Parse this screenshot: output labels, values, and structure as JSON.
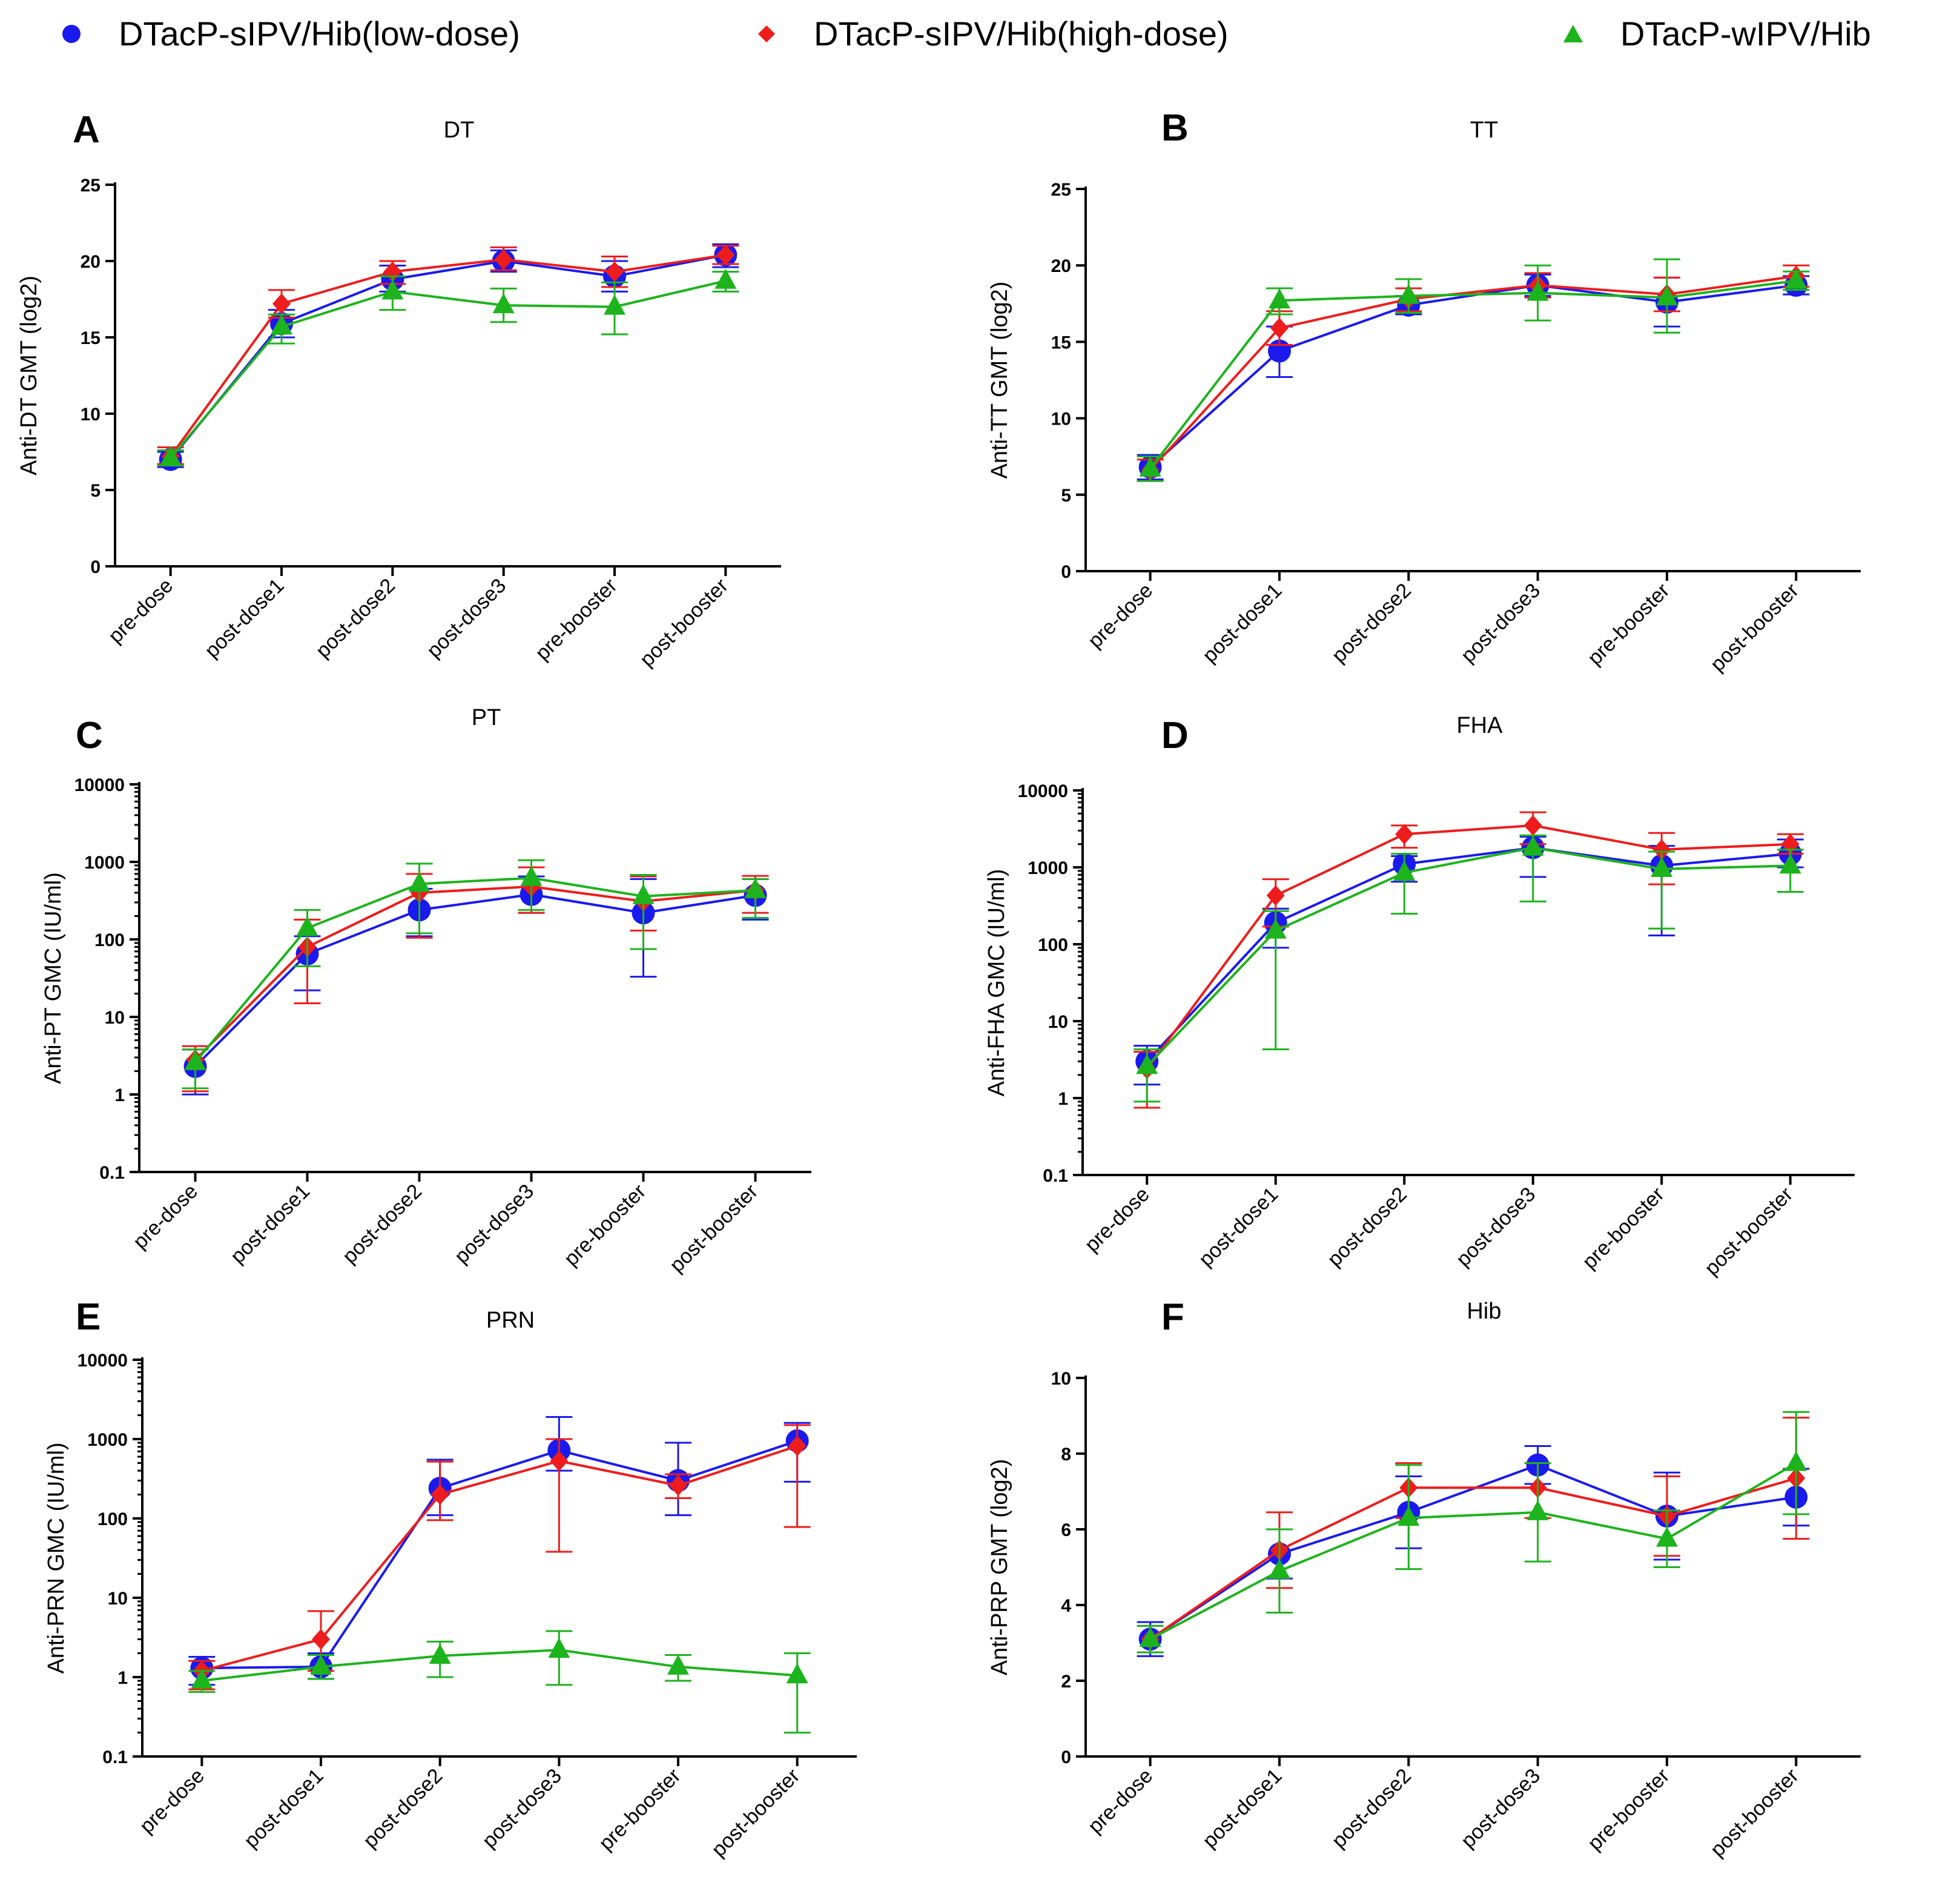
{
  "legend": {
    "low": "DTacP-sIPV/Hib(low-dose)",
    "high": "DTacP-sIPV/Hib(high-dose)",
    "wipv": "DTacP-wIPV/Hib"
  },
  "colors": {
    "low": "#1a1aee",
    "high": "#ee1c1c",
    "wipv": "#1db31d"
  },
  "chart_data": [
    {
      "panel": "A",
      "type": "line",
      "title": "DT",
      "ylabel": "Anti-DT GMT (log2)",
      "scale": "linear",
      "ylim": [
        0,
        25
      ],
      "yticks": [
        0,
        5,
        10,
        15,
        20,
        25
      ],
      "ytick_labels": [
        "0",
        "5",
        "10",
        "15",
        "20",
        "25"
      ],
      "categories": [
        "pre-dose",
        "post-dose1",
        "post-dose2",
        "post-dose3",
        "pre-booster",
        "post-booster"
      ],
      "series": [
        {
          "name": "DTacP-sIPV/Hib(low-dose)",
          "values": [
            7.0,
            15.9,
            18.8,
            20.0,
            19.0,
            20.4
          ],
          "err_low": [
            6.5,
            15.0,
            18.0,
            19.3,
            18.0,
            19.6
          ],
          "err_high": [
            7.5,
            16.8,
            19.7,
            20.7,
            20.0,
            21.1
          ]
        },
        {
          "name": "DTacP-sIPV/Hib(high-dose)",
          "values": [
            7.2,
            17.2,
            19.3,
            20.1,
            19.3,
            20.4
          ],
          "err_low": [
            6.7,
            16.3,
            18.5,
            19.4,
            18.3,
            19.8
          ],
          "err_high": [
            7.8,
            18.1,
            20.0,
            20.9,
            20.3,
            21.0
          ]
        },
        {
          "name": "DTacP-wIPV/Hib",
          "values": [
            7.1,
            15.7,
            18.0,
            17.1,
            17.0,
            18.7
          ],
          "err_low": [
            6.6,
            14.6,
            16.8,
            16.0,
            15.2,
            18.0
          ],
          "err_high": [
            7.6,
            16.5,
            19.0,
            18.2,
            18.6,
            19.3
          ]
        }
      ]
    },
    {
      "panel": "B",
      "type": "line",
      "title": "TT",
      "ylabel": "Anti-TT GMT (log2)",
      "scale": "linear",
      "ylim": [
        0,
        25
      ],
      "yticks": [
        0,
        5,
        10,
        15,
        20,
        25
      ],
      "ytick_labels": [
        "0",
        "5",
        "10",
        "15",
        "20",
        "25"
      ],
      "categories": [
        "pre-dose",
        "post-dose1",
        "post-dose2",
        "post-dose3",
        "pre-booster",
        "post-booster"
      ],
      "series": [
        {
          "name": "DTacP-sIPV/Hib(low-dose)",
          "values": [
            6.8,
            14.4,
            17.4,
            18.7,
            17.6,
            18.7
          ],
          "err_low": [
            6.0,
            12.7,
            16.8,
            18.0,
            16.0,
            18.1
          ],
          "err_high": [
            7.6,
            16.0,
            18.0,
            19.4,
            19.2,
            19.3
          ]
        },
        {
          "name": "DTacP-sIPV/Hib(high-dose)",
          "values": [
            6.6,
            15.9,
            17.8,
            18.7,
            18.1,
            19.3
          ],
          "err_low": [
            5.9,
            14.8,
            17.0,
            17.9,
            17.0,
            18.6
          ],
          "err_high": [
            7.3,
            17.0,
            18.5,
            19.5,
            19.2,
            20.0
          ]
        },
        {
          "name": "DTacP-wIPV/Hib",
          "values": [
            6.7,
            17.7,
            18.0,
            18.2,
            17.9,
            19.0
          ],
          "err_low": [
            5.9,
            16.8,
            16.9,
            16.4,
            15.6,
            18.4
          ],
          "err_high": [
            7.5,
            18.5,
            19.1,
            20.0,
            20.4,
            19.6
          ]
        }
      ]
    },
    {
      "panel": "C",
      "type": "line",
      "title": "PT",
      "ylabel": "Anti-PT GMC (IU/ml)",
      "scale": "log",
      "ylim": [
        0.1,
        10000
      ],
      "yticks": [
        0.1,
        1,
        10,
        100,
        1000,
        10000
      ],
      "ytick_labels": [
        "0.1",
        "1",
        "10",
        "100",
        "1000",
        "10000"
      ],
      "categories": [
        "pre-dose",
        "post-dose1",
        "post-dose2",
        "post-dose3",
        "pre-booster",
        "post-booster"
      ],
      "series": [
        {
          "name": "DTacP-sIPV/Hib(low-dose)",
          "values": [
            2.3,
            65,
            240,
            380,
            220,
            370
          ],
          "err_low": [
            1.0,
            22,
            110,
            220,
            33,
            180
          ],
          "err_high": [
            3.8,
            110,
            450,
            650,
            600,
            600
          ]
        },
        {
          "name": "DTacP-sIPV/Hib(high-dose)",
          "values": [
            2.8,
            80,
            400,
            480,
            310,
            430
          ],
          "err_low": [
            1.1,
            15,
            105,
            220,
            130,
            220
          ],
          "err_high": [
            4.2,
            180,
            700,
            850,
            650,
            660
          ]
        },
        {
          "name": "DTacP-wIPV/Hib",
          "values": [
            2.6,
            140,
            520,
            620,
            360,
            430
          ],
          "err_low": [
            1.2,
            45,
            120,
            240,
            75,
            190
          ],
          "err_high": [
            3.8,
            240,
            950,
            1050,
            680,
            600
          ]
        }
      ]
    },
    {
      "panel": "D",
      "type": "line",
      "title": "FHA",
      "ylabel": "Anti-FHA GMC (IU/ml)",
      "scale": "log",
      "ylim": [
        0.1,
        10000
      ],
      "yticks": [
        0.1,
        1,
        10,
        100,
        1000,
        10000
      ],
      "ytick_labels": [
        "0.1",
        "1",
        "10",
        "100",
        "1000",
        "10000"
      ],
      "categories": [
        "pre-dose",
        "post-dose1",
        "post-dose2",
        "post-dose3",
        "pre-booster",
        "post-booster"
      ],
      "series": [
        {
          "name": "DTacP-sIPV/Hib(low-dose)",
          "values": [
            3.0,
            190,
            1100,
            1800,
            1050,
            1500
          ],
          "err_low": [
            1.5,
            90,
            650,
            750,
            130,
            1000
          ],
          "err_high": [
            4.8,
            290,
            1400,
            2500,
            1900,
            2300
          ]
        },
        {
          "name": "DTacP-sIPV/Hib(high-dose)",
          "values": [
            2.4,
            430,
            2700,
            3500,
            1700,
            2000
          ],
          "err_low": [
            0.75,
            170,
            1800,
            2000,
            600,
            1500
          ],
          "err_high": [
            4.0,
            700,
            3500,
            5200,
            2800,
            2700
          ]
        },
        {
          "name": "DTacP-wIPV/Hib",
          "values": [
            2.6,
            150,
            850,
            1800,
            950,
            1050
          ],
          "err_low": [
            0.9,
            4.3,
            250,
            360,
            160,
            480
          ],
          "err_high": [
            4.3,
            270,
            1500,
            2600,
            1600,
            1700
          ]
        }
      ]
    },
    {
      "panel": "E",
      "type": "line",
      "title": "PRN",
      "ylabel": "Anti-PRN GMC (IU/ml)",
      "scale": "log",
      "ylim": [
        0.1,
        10000
      ],
      "yticks": [
        0.1,
        1,
        10,
        100,
        1000,
        10000
      ],
      "ytick_labels": [
        "0.1",
        "1",
        "10",
        "100",
        "1000",
        "10000"
      ],
      "categories": [
        "pre-dose",
        "post-dose1",
        "post-dose2",
        "post-dose3",
        "pre-booster",
        "post-booster"
      ],
      "series": [
        {
          "name": "DTacP-sIPV/Hib(low-dose)",
          "values": [
            1.3,
            1.35,
            240,
            720,
            300,
            950
          ],
          "err_low": [
            0.8,
            0.95,
            110,
            400,
            110,
            290
          ],
          "err_high": [
            1.8,
            2.0,
            550,
            1900,
            900,
            1600
          ]
        },
        {
          "name": "DTacP-sIPV/Hib(high-dose)",
          "values": [
            1.2,
            3.0,
            200,
            530,
            260,
            820
          ],
          "err_low": [
            0.7,
            1.2,
            95,
            38,
            180,
            78
          ],
          "err_high": [
            1.6,
            6.8,
            520,
            1000,
            360,
            1500
          ]
        },
        {
          "name": "DTacP-wIPV/Hib",
          "values": [
            0.9,
            1.35,
            1.85,
            2.2,
            1.35,
            1.05
          ],
          "err_low": [
            0.65,
            0.95,
            1.0,
            0.8,
            0.9,
            0.2
          ],
          "err_high": [
            1.2,
            1.9,
            2.8,
            3.8,
            1.9,
            2.0
          ]
        }
      ]
    },
    {
      "panel": "F",
      "type": "line",
      "title": "Hib",
      "ylabel": "Anti-PRP GMT (log2)",
      "scale": "linear",
      "ylim": [
        0,
        10
      ],
      "yticks": [
        0,
        2,
        4,
        6,
        8,
        10
      ],
      "ytick_labels": [
        "0",
        "2",
        "4",
        "6",
        "8",
        "10"
      ],
      "categories": [
        "pre-dose",
        "post-dose1",
        "post-dose2",
        "post-dose3",
        "pre-booster",
        "post-booster"
      ],
      "series": [
        {
          "name": "DTacP-sIPV/Hib(low-dose)",
          "values": [
            3.1,
            5.35,
            6.45,
            7.7,
            6.35,
            6.85
          ],
          "err_low": [
            2.65,
            4.7,
            5.5,
            7.2,
            5.2,
            6.1
          ],
          "err_high": [
            3.55,
            6.0,
            7.4,
            8.2,
            7.5,
            7.6
          ]
        },
        {
          "name": "DTacP-sIPV/Hib(high-dose)",
          "values": [
            3.1,
            5.45,
            7.1,
            7.1,
            6.35,
            7.35
          ],
          "err_low": [
            2.75,
            4.45,
            6.3,
            6.3,
            5.3,
            5.75
          ],
          "err_high": [
            3.45,
            6.45,
            7.75,
            7.75,
            7.4,
            8.95
          ]
        },
        {
          "name": "DTacP-wIPV/Hib",
          "values": [
            3.1,
            4.9,
            6.3,
            6.45,
            5.75,
            7.75
          ],
          "err_low": [
            2.75,
            3.8,
            4.95,
            5.15,
            5.0,
            6.4
          ],
          "err_high": [
            3.45,
            6.0,
            7.7,
            7.75,
            6.5,
            9.1
          ]
        }
      ]
    }
  ]
}
